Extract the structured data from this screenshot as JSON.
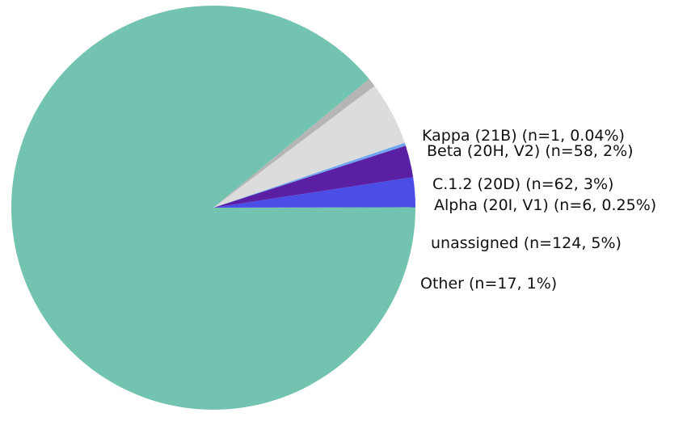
{
  "chart_data": {
    "type": "pie",
    "slices": [
      {
        "key": "kappa",
        "label": "Kappa (21B) (n=1, 0.04%)",
        "value": 1,
        "color": "#5fbfa6"
      },
      {
        "key": "beta",
        "label": "Beta (20H, V2) (n=58, 2%)",
        "value": 58,
        "color": "#4a4ee6"
      },
      {
        "key": "c12",
        "label": "C.1.2 (20D) (n=62, 3%)",
        "value": 62,
        "color": "#5b1fa3"
      },
      {
        "key": "alpha",
        "label": "Alpha (20I, V1) (n=6, 0.25%)",
        "value": 6,
        "color": "#6fa6f0"
      },
      {
        "key": "unassigned",
        "label": "unassigned (n=124, 5%)",
        "value": 124,
        "color": "#dcdcdc"
      },
      {
        "key": "other",
        "label": "Other (n=17, 1%)",
        "value": 17,
        "color": "#b5b5b5"
      },
      {
        "key": "delta",
        "label": "",
        "value": 2170,
        "color": "#72c3b0"
      }
    ]
  }
}
